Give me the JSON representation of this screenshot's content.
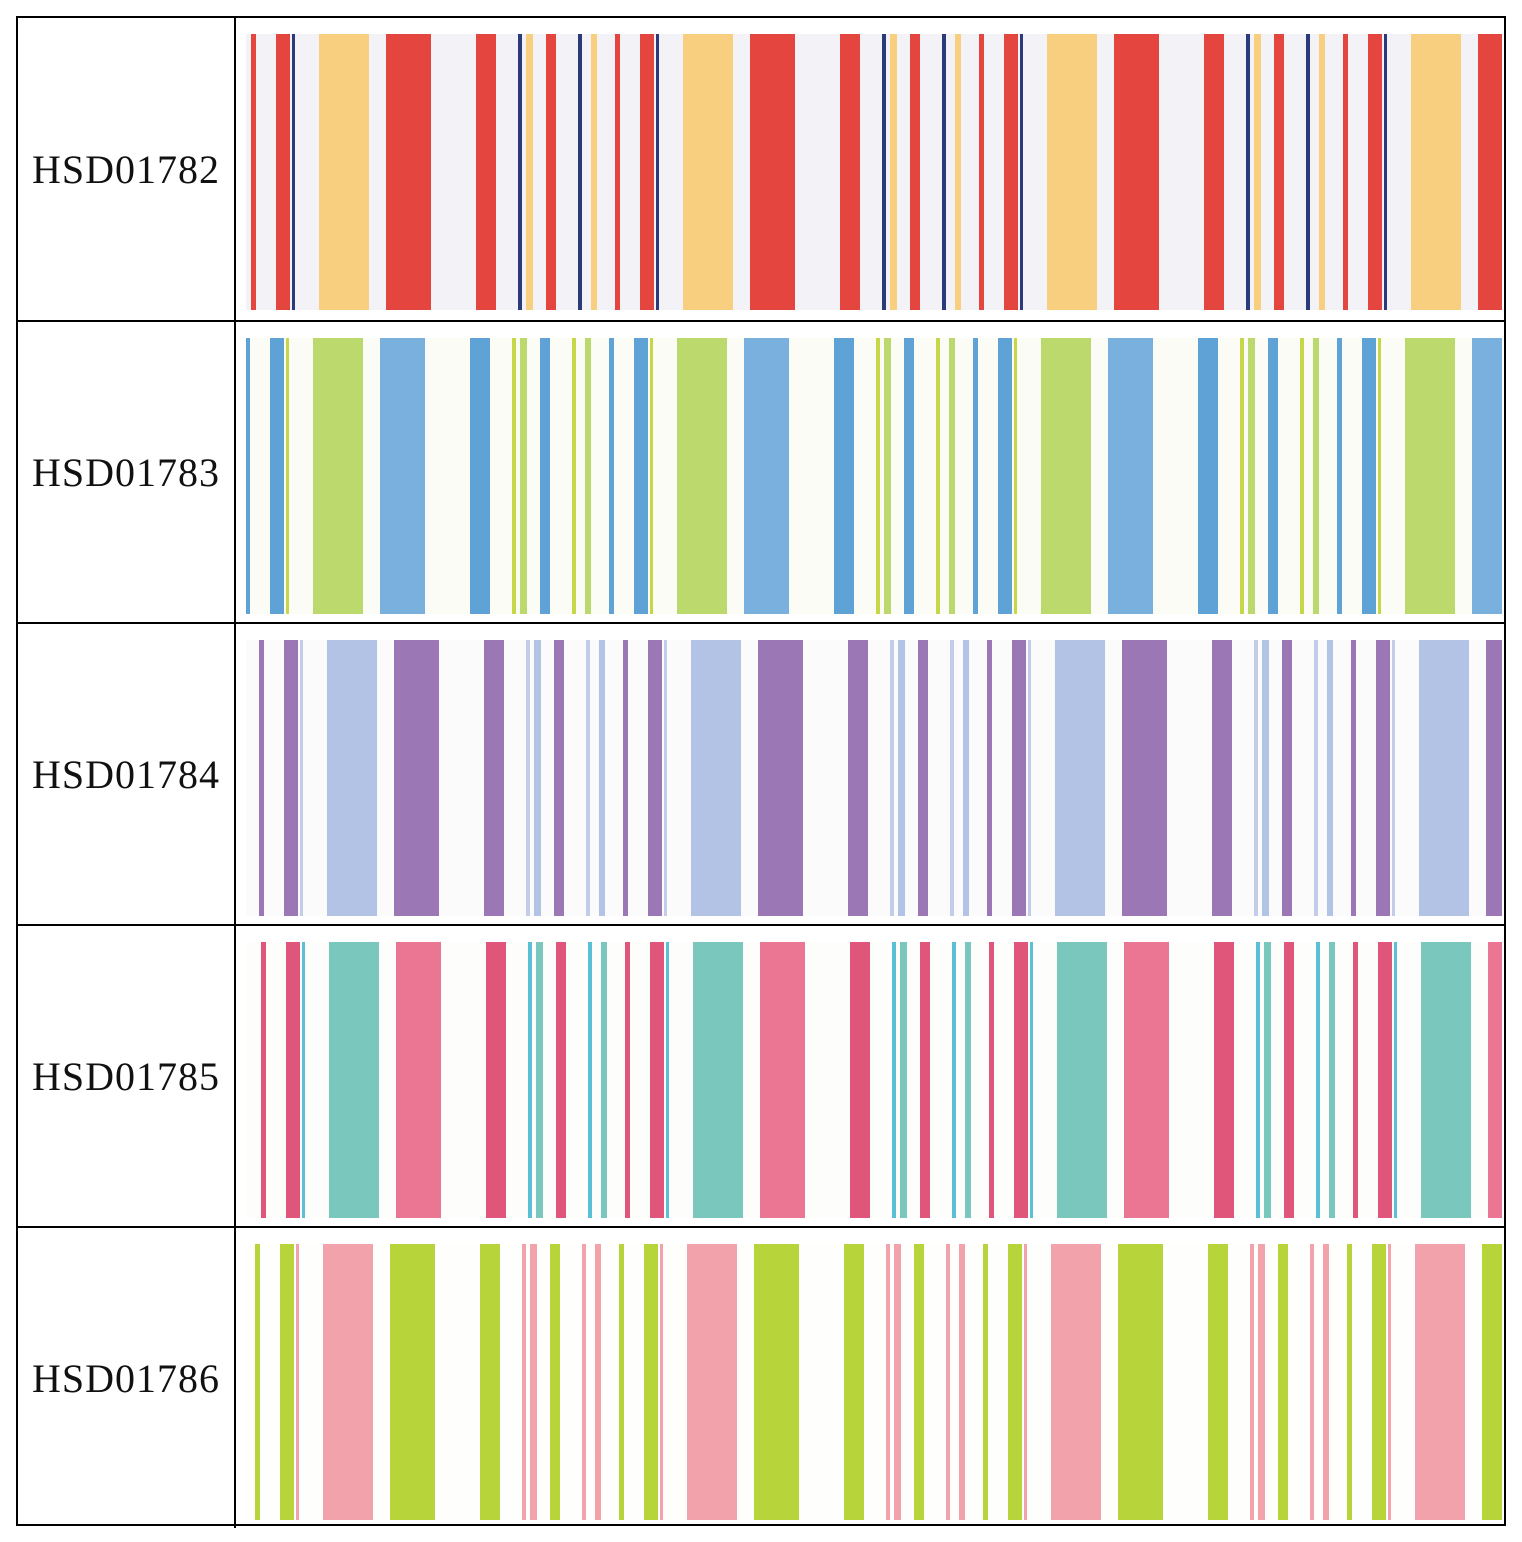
{
  "table": {
    "rows": [
      {
        "code": "HSD01782"
      },
      {
        "code": "HSD01783"
      },
      {
        "code": "HSD01784"
      },
      {
        "code": "HSD01785"
      },
      {
        "code": "HSD01786"
      }
    ]
  }
}
